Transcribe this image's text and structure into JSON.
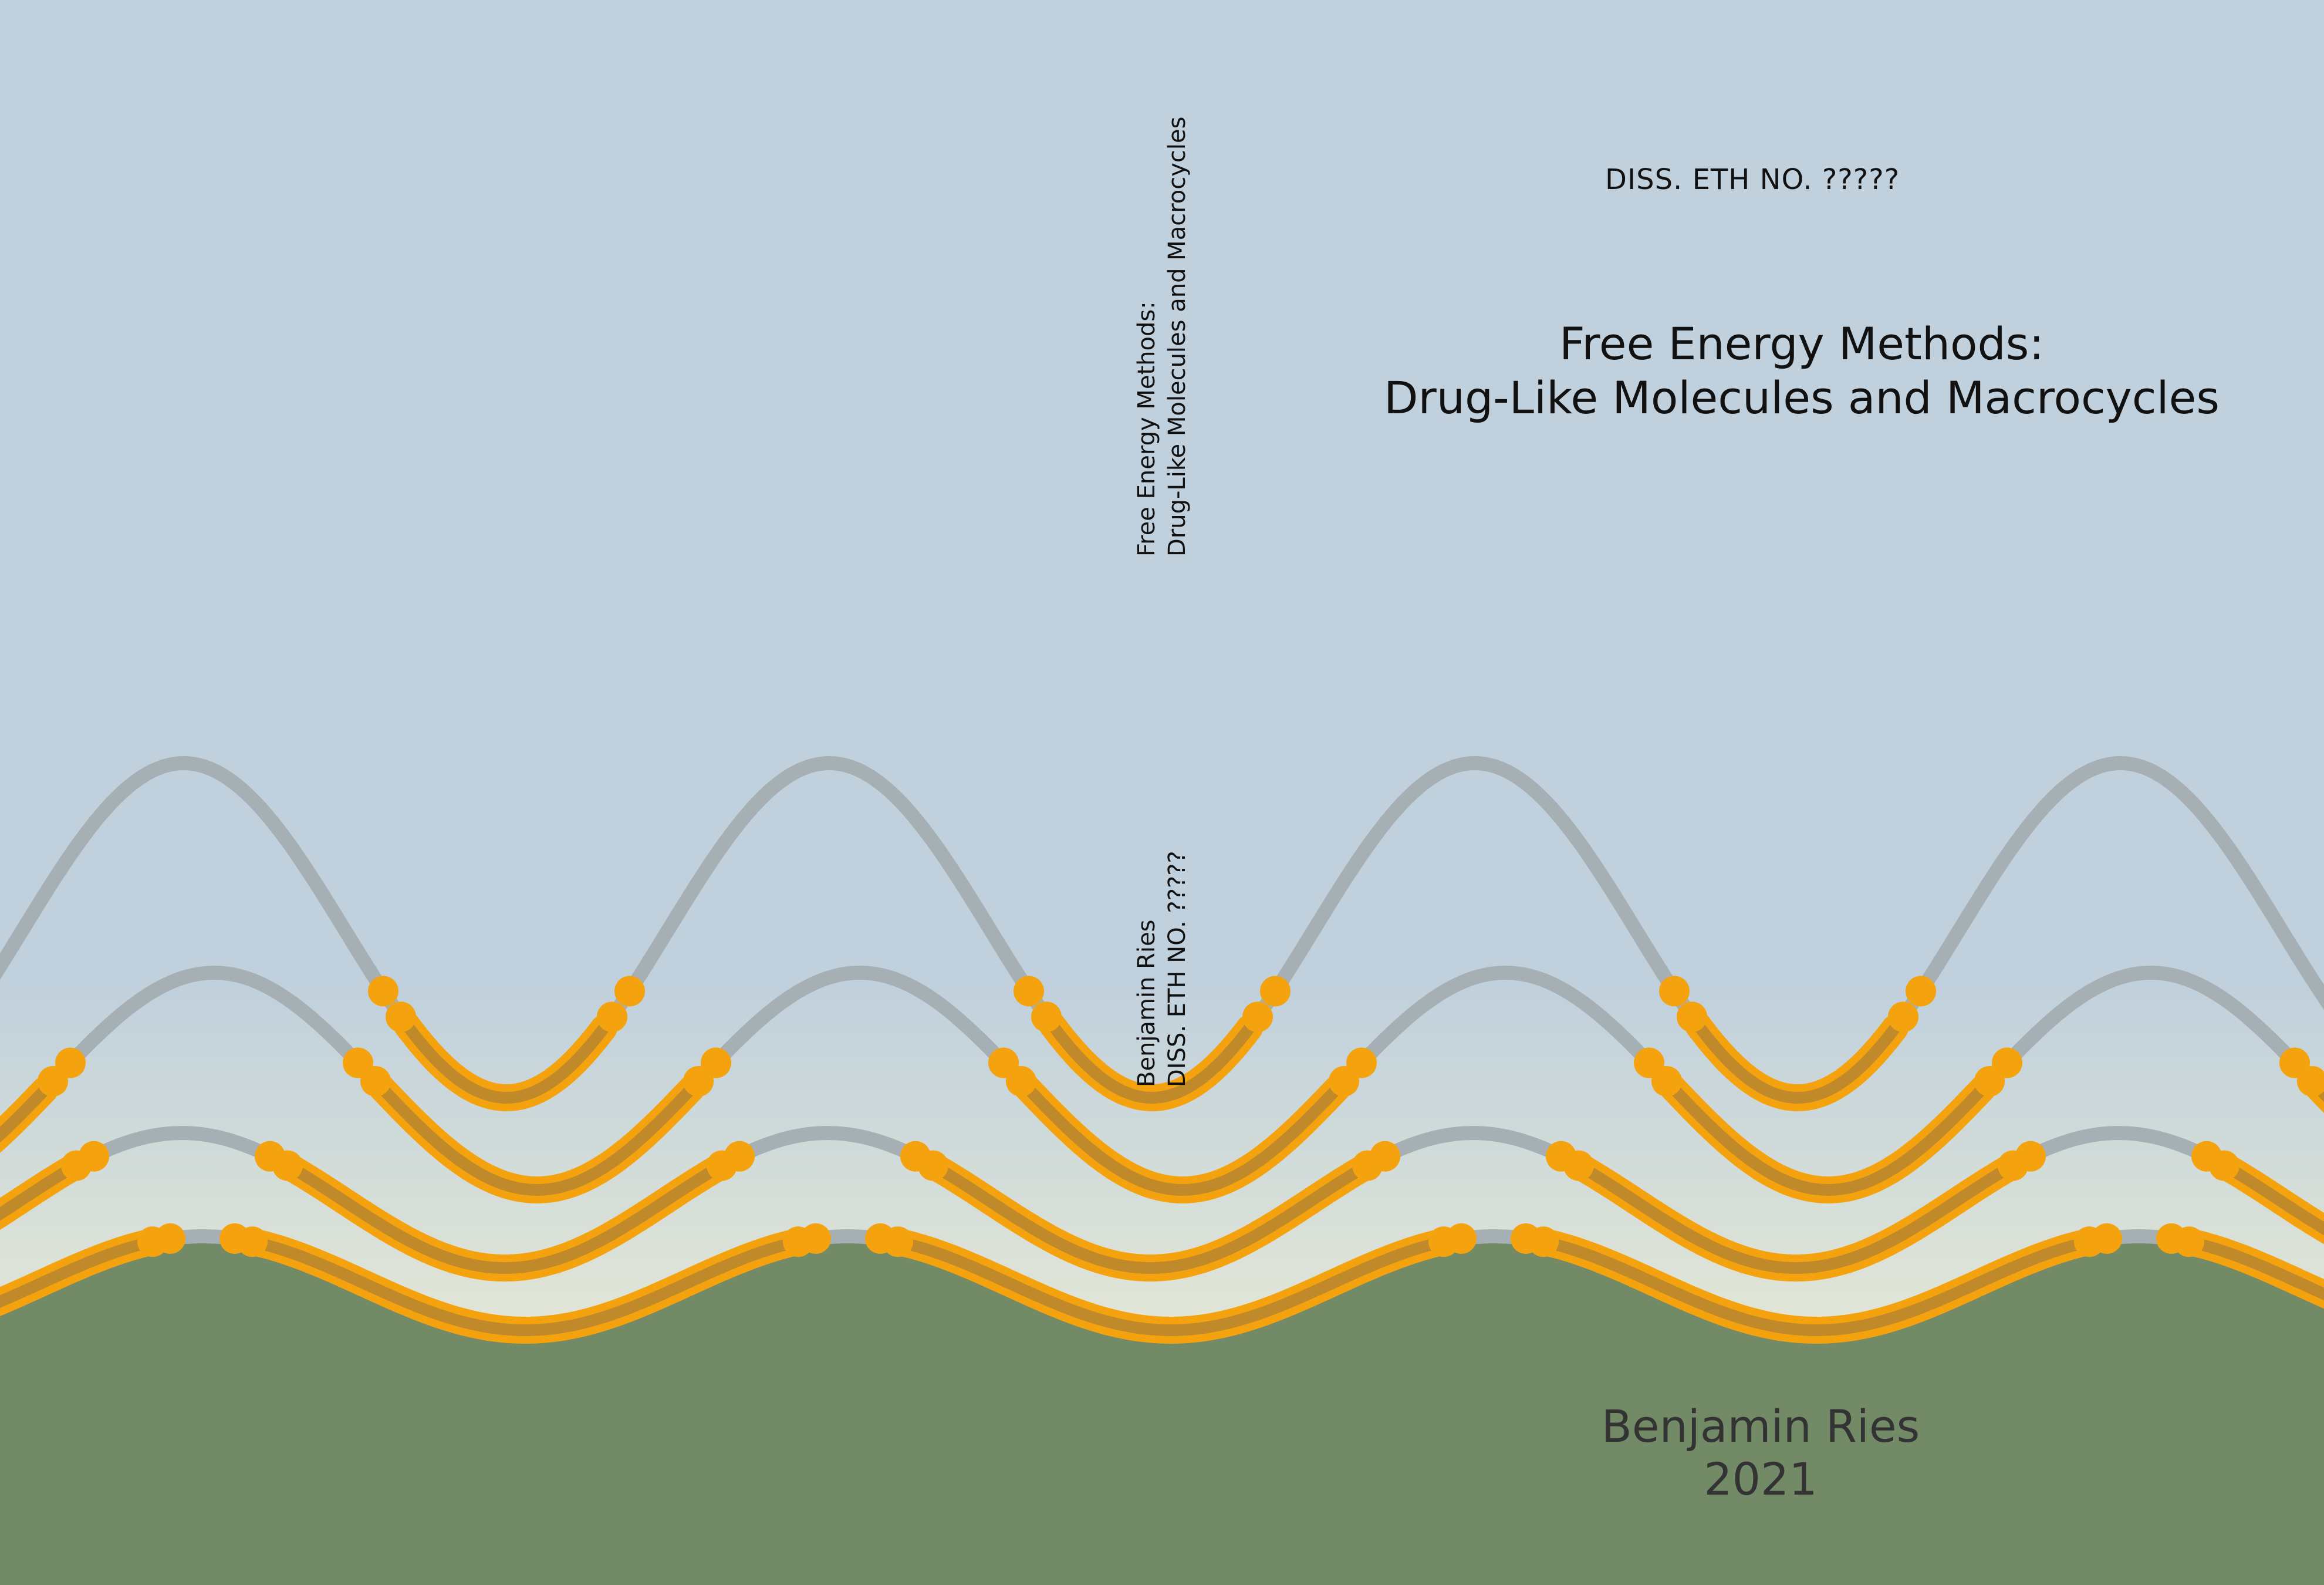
{
  "front": {
    "diss_number": "DISS. ETH NO. ?????",
    "title_line1": "Free Energy Methods:",
    "title_line2": "Drug-Like Molecules and Macrocycles",
    "author": "Benjamin Ries",
    "year": "2021"
  },
  "spine": {
    "title_line1": "Free Energy Methods:",
    "title_line2": "Drug-Like Molecules and Macrocycles",
    "author": "Benjamin Ries",
    "diss_number": "DISS. ETH NO. ?????"
  },
  "colors": {
    "sky_top": "#c0d0dc",
    "sky_horizon": "#e2e6d6",
    "ground": "#728a66",
    "curve_gray": "#a6b0b4",
    "highlight_orange": "#f5a20f",
    "text_dark": "#111111",
    "author_text": "#333333"
  }
}
